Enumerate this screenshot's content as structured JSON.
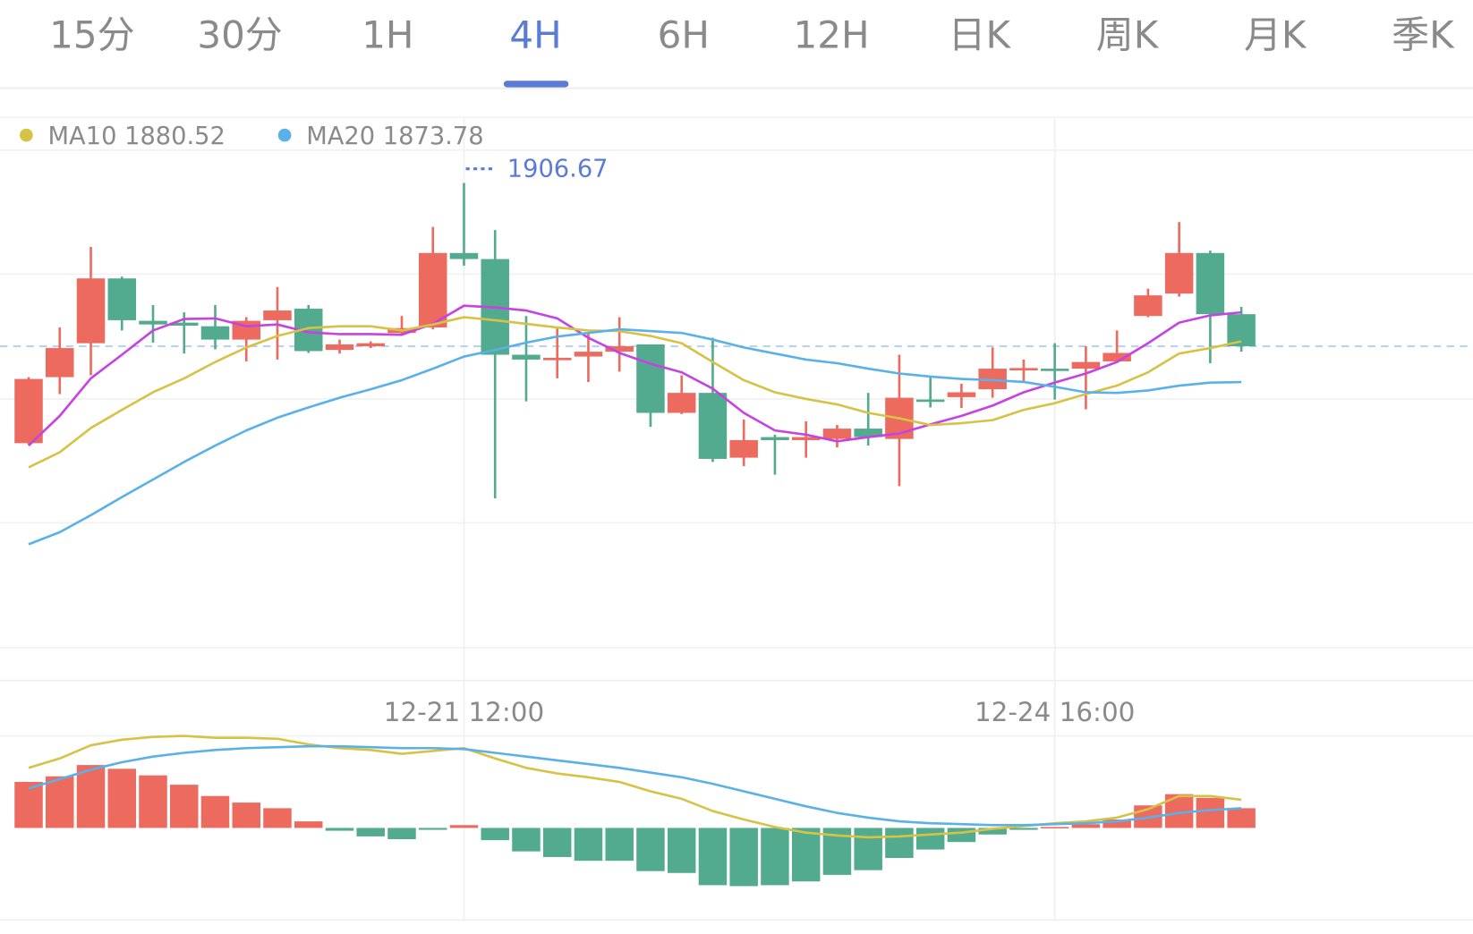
{
  "tabs": [
    "15分",
    "30分",
    "1H",
    "4H",
    "6H",
    "12H",
    "日K",
    "周K",
    "月K",
    "季K"
  ],
  "active_tab": 3,
  "chart_data": [
    {
      "type": "candlestick",
      "categories": [
        null,
        null,
        null,
        null,
        null,
        null,
        null,
        null,
        null,
        null,
        null,
        null,
        null,
        null,
        "12-21 12:00",
        null,
        null,
        null,
        null,
        null,
        null,
        null,
        null,
        null,
        null,
        null,
        null,
        null,
        null,
        null,
        null,
        null,
        null,
        "12-24 16:00",
        null,
        null,
        null,
        null,
        null,
        null
      ],
      "open": [
        1863.7,
        1874.6,
        1880.2,
        1890.9,
        1883.9,
        1883.6,
        1883.0,
        1880.8,
        1884.0,
        1885.9,
        1879.1,
        1879.7,
        1881.9,
        1882.8,
        1895.1,
        1894.1,
        1878.3,
        1877.4,
        1878.0,
        1878.8,
        1880.0,
        1868.7,
        1872.0,
        1861.3,
        1864.7,
        1864.2,
        1864.4,
        1866.1,
        1864.4,
        1870.9,
        1871.3,
        1872.6,
        1875.8,
        1876.0,
        1876.0,
        1877.2,
        1884.7,
        1888.4,
        1895.1,
        1885.0
      ],
      "high": [
        1874.6,
        1882.8,
        1896.1,
        1891.2,
        1886.5,
        1885.3,
        1886.5,
        1884.5,
        1889.5,
        1886.5,
        1880.8,
        1880.5,
        1884.7,
        1899.4,
        1906.67,
        1898.9,
        1884.7,
        1882.7,
        1881.9,
        1884.5,
        1880.0,
        1874.9,
        1881.1,
        1867.6,
        1865.1,
        1867.3,
        1866.7,
        1872.0,
        1878.3,
        1874.7,
        1873.5,
        1879.5,
        1877.5,
        1880.2,
        1879.7,
        1882.3,
        1889.2,
        1900.2,
        1895.5,
        1886.2
      ],
      "low": [
        1863.4,
        1871.8,
        1874.9,
        1882.3,
        1880.3,
        1878.5,
        1879.2,
        1877.2,
        1877.5,
        1878.6,
        1878.5,
        1879.4,
        1881.6,
        1882.5,
        1893.0,
        1854.6,
        1870.6,
        1874.4,
        1873.8,
        1875.5,
        1866.4,
        1868.5,
        1860.6,
        1859.9,
        1858.5,
        1861.3,
        1863.0,
        1863.3,
        1856.6,
        1869.6,
        1869.5,
        1871.2,
        1873.8,
        1870.9,
        1869.3,
        1877.1,
        1884.5,
        1887.9,
        1876.9,
        1878.8
      ],
      "close": [
        1874.3,
        1879.4,
        1890.9,
        1884.0,
        1883.3,
        1883.1,
        1880.8,
        1883.9,
        1885.6,
        1878.9,
        1880.0,
        1880.2,
        1882.7,
        1895.1,
        1894.1,
        1878.3,
        1877.5,
        1877.8,
        1878.8,
        1879.7,
        1868.7,
        1872.0,
        1861.1,
        1864.2,
        1864.2,
        1864.7,
        1866.1,
        1864.7,
        1871.2,
        1870.6,
        1872.1,
        1876.0,
        1876.1,
        1875.8,
        1877.1,
        1878.6,
        1888.1,
        1895.1,
        1885.0,
        1879.7
      ],
      "up_color": "#ec6a5e",
      "down_color": "#52ab8e",
      "series": [
        {
          "color": "#c543e0",
          "values": [
            1863.3,
            1868.2,
            1874.4,
            1878.3,
            1882.3,
            1884.2,
            1884.3,
            1883.0,
            1883.3,
            1882.0,
            1881.7,
            1881.7,
            1881.6,
            1883.4,
            1886.4,
            1886.1,
            1885.6,
            1884.3,
            1881.1,
            1878.6,
            1876.8,
            1875.4,
            1872.7,
            1868.7,
            1865.8,
            1865.1,
            1864.0,
            1864.7,
            1865.3,
            1866.8,
            1868.2,
            1869.9,
            1872.1,
            1873.7,
            1875.2,
            1877.1,
            1880.2,
            1883.6,
            1884.8,
            1885.3
          ]
        },
        {
          "name": "MA10",
          "color": "#d6c245",
          "values": [
            1859.7,
            1862.2,
            1866.2,
            1869.2,
            1872.1,
            1874.4,
            1877.1,
            1879.5,
            1881.4,
            1882.7,
            1883.0,
            1883.0,
            1882.3,
            1883.3,
            1884.5,
            1884.0,
            1883.4,
            1882.8,
            1882.3,
            1882.2,
            1881.4,
            1880.2,
            1877.1,
            1874.1,
            1872.1,
            1871.0,
            1870.1,
            1868.7,
            1867.8,
            1866.7,
            1867.0,
            1867.5,
            1869.2,
            1870.3,
            1871.8,
            1873.2,
            1875.4,
            1878.5,
            1879.4,
            1880.52
          ]
        },
        {
          "name": "MA20",
          "color": "#5ab1e8",
          "values": [
            1847.0,
            1849.0,
            1851.8,
            1854.8,
            1857.7,
            1860.6,
            1863.3,
            1865.8,
            1867.9,
            1869.6,
            1871.2,
            1872.6,
            1874.1,
            1876.0,
            1878.0,
            1879.1,
            1880.3,
            1881.3,
            1881.9,
            1882.5,
            1882.2,
            1881.9,
            1880.8,
            1879.5,
            1878.5,
            1877.5,
            1876.9,
            1876.0,
            1875.2,
            1874.7,
            1874.3,
            1874.1,
            1873.8,
            1873.0,
            1872.1,
            1872.0,
            1872.4,
            1873.2,
            1873.7,
            1873.78
          ]
        }
      ],
      "ylim": [
        1824.5,
        1917.5
      ]
    },
    {
      "type": "macd",
      "histogram": [
        2.45,
        2.75,
        3.35,
        3.15,
        2.8,
        2.3,
        1.7,
        1.35,
        1.05,
        0.35,
        -0.15,
        -0.45,
        -0.6,
        -0.1,
        0.15,
        -0.65,
        -1.25,
        -1.55,
        -1.75,
        -1.75,
        -2.3,
        -2.4,
        -3.05,
        -3.1,
        -3.05,
        -2.85,
        -2.5,
        -2.25,
        -1.6,
        -1.15,
        -0.75,
        -0.35,
        -0.1,
        0.05,
        0.2,
        0.45,
        1.2,
        1.8,
        1.6,
        1.05
      ],
      "up_color": "#ec6a5e",
      "down_color": "#52ab8e",
      "series": [
        {
          "color": "#d6c245",
          "values": [
            3.2,
            3.7,
            4.4,
            4.7,
            4.85,
            4.9,
            4.8,
            4.8,
            4.75,
            4.45,
            4.25,
            4.15,
            3.95,
            4.1,
            4.25,
            3.7,
            3.2,
            2.9,
            2.7,
            2.45,
            1.95,
            1.55,
            0.9,
            0.45,
            0.05,
            -0.25,
            -0.4,
            -0.5,
            -0.45,
            -0.35,
            -0.25,
            -0.05,
            0.1,
            0.25,
            0.35,
            0.55,
            1.0,
            1.7,
            1.7,
            1.5
          ]
        },
        {
          "color": "#5ab1e8",
          "values": [
            2.1,
            2.6,
            3.1,
            3.5,
            3.8,
            4.0,
            4.15,
            4.25,
            4.3,
            4.35,
            4.35,
            4.3,
            4.25,
            4.25,
            4.2,
            4.0,
            3.8,
            3.6,
            3.4,
            3.2,
            2.95,
            2.7,
            2.35,
            1.95,
            1.55,
            1.15,
            0.8,
            0.55,
            0.35,
            0.25,
            0.2,
            0.15,
            0.15,
            0.2,
            0.25,
            0.35,
            0.55,
            0.8,
            0.95,
            1.05
          ]
        }
      ],
      "ylim": [
        -4.9,
        4.85
      ]
    }
  ]
}
